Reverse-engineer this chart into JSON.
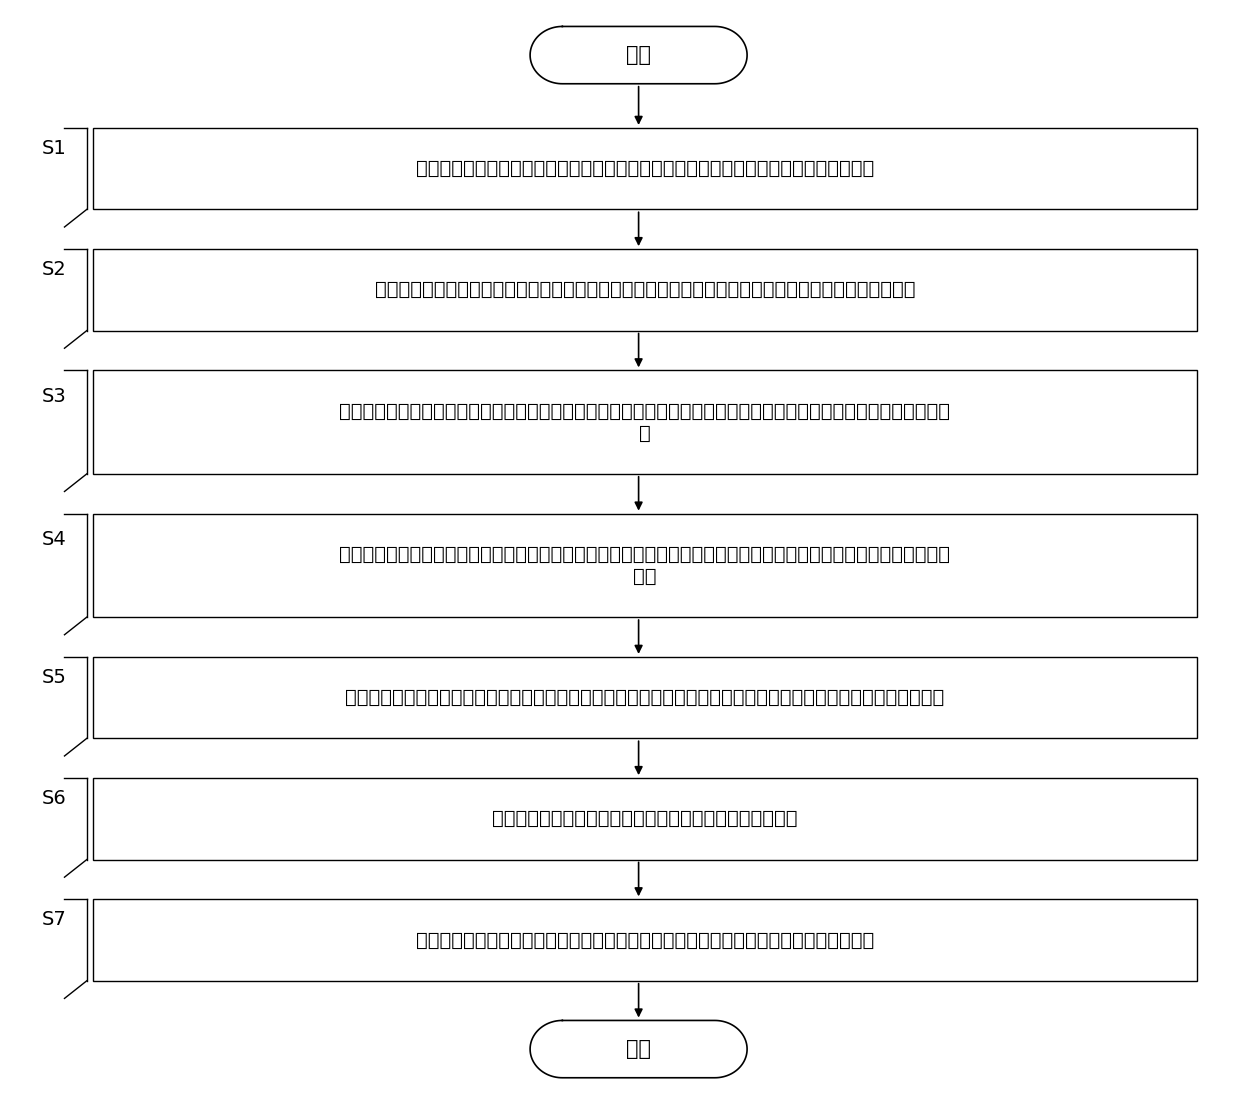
{
  "background_color": "#ffffff",
  "start_text": "开始",
  "end_text": "结束",
  "steps": [
    {
      "label": "S1",
      "text": "对信号光源以及大功率激光器发出启动指令，同时将光电复合缆中的导线通电并设置参数",
      "tall": false
    },
    {
      "label": "S2",
      "text": "对信号光源和大功率激光器发出的光信号进行融合，并将融合后的光信经光电复合缆传输至光纤传感器中",
      "tall": false
    },
    {
      "label": "S3",
      "text": "调整光电复合缆和光纤传感器中导线的电流和调整电热退火的温度，并对光电复合缆中的光纤和光纤传感器进行电热退\n火",
      "tall": true
    },
    {
      "label": "S4",
      "text": "调整大功率激光器发出的光的光强和波长，并利用大功率激光器产生的光对光电复合缆中的光纤和光纤传感器进行光热\n退火",
      "tall": true
    },
    {
      "label": "S5",
      "text": "经光热退火和电热退火后，将所述光纤传感器中的后向散射光传入至光电探测器中，并将其光信号转换成模拟电信号",
      "tall": false
    },
    {
      "label": "S6",
      "text": "采集所述模拟电信号，并将所述模拟电信号转换成数字信号",
      "tall": false
    },
    {
      "label": "S7",
      "text": "对所述数据信号进行解调得到待测参数，并完成分布式光热退火和电热退火的抗辐射处理",
      "tall": false
    }
  ],
  "line_color": "#000000",
  "text_color": "#000000",
  "box_fill": "#ffffff",
  "box_edge": "#000000",
  "font_size": 14,
  "label_font_size": 14,
  "terminal_font_size": 15
}
